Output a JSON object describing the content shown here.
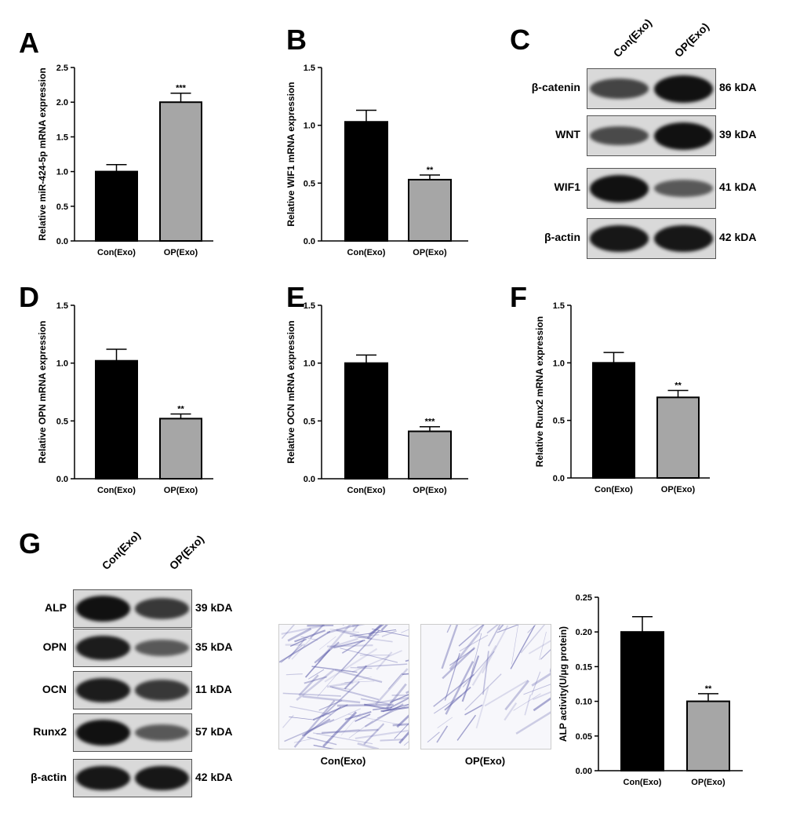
{
  "panels": {
    "A": "A",
    "B": "B",
    "C": "C",
    "D": "D",
    "E": "E",
    "F": "F",
    "G": "G"
  },
  "chart_data": [
    {
      "id": "A",
      "type": "bar",
      "categories": [
        "Con(Exo)",
        "OP(Exo)"
      ],
      "values": [
        1.0,
        2.0
      ],
      "errors": [
        0.1,
        0.13
      ],
      "significance": [
        "",
        "***"
      ],
      "ylabel": "Relative miR-424-5p mRNA expression",
      "ylim": [
        0,
        2.5
      ],
      "yticks": [
        "0.0",
        "0.5",
        "1.0",
        "1.5",
        "2.0",
        "2.5"
      ],
      "colors": [
        "#000000",
        "#a6a6a6"
      ]
    },
    {
      "id": "B",
      "type": "bar",
      "categories": [
        "Con(Exo)",
        "OP(Exo)"
      ],
      "values": [
        1.03,
        0.53
      ],
      "errors": [
        0.1,
        0.04
      ],
      "significance": [
        "",
        "**"
      ],
      "ylabel": "Relative WIF1 mRNA expression",
      "ylim": [
        0,
        1.5
      ],
      "yticks": [
        "0.0",
        "0.5",
        "1.0",
        "1.5"
      ],
      "colors": [
        "#000000",
        "#a6a6a6"
      ]
    },
    {
      "id": "D",
      "type": "bar",
      "categories": [
        "Con(Exo)",
        "OP(Exo)"
      ],
      "values": [
        1.02,
        0.52
      ],
      "errors": [
        0.1,
        0.04
      ],
      "significance": [
        "",
        "**"
      ],
      "ylabel": "Relative OPN mRNA expression",
      "ylim": [
        0,
        1.5
      ],
      "yticks": [
        "0.0",
        "0.5",
        "1.0",
        "1.5"
      ],
      "colors": [
        "#000000",
        "#a6a6a6"
      ]
    },
    {
      "id": "E",
      "type": "bar",
      "categories": [
        "Con(Exo)",
        "OP(Exo)"
      ],
      "values": [
        1.0,
        0.41
      ],
      "errors": [
        0.07,
        0.04
      ],
      "significance": [
        "",
        "***"
      ],
      "ylabel": "Relative OCN mRNA expression",
      "ylim": [
        0,
        1.5
      ],
      "yticks": [
        "0.0",
        "0.5",
        "1.0",
        "1.5"
      ],
      "colors": [
        "#000000",
        "#a6a6a6"
      ]
    },
    {
      "id": "F",
      "type": "bar",
      "categories": [
        "Con(Exo)",
        "OP(Exo)"
      ],
      "values": [
        1.0,
        0.7
      ],
      "errors": [
        0.09,
        0.06
      ],
      "significance": [
        "",
        "**"
      ],
      "ylabel": "Relative Runx2 mRNA expression",
      "ylim": [
        0,
        1.5
      ],
      "yticks": [
        "0.0",
        "0.5",
        "1.0",
        "1.5"
      ],
      "colors": [
        "#000000",
        "#a6a6a6"
      ]
    },
    {
      "id": "G",
      "type": "bar",
      "categories": [
        "Con(Exo)",
        "OP(Exo)"
      ],
      "values": [
        0.2,
        0.1
      ],
      "errors": [
        0.022,
        0.011
      ],
      "significance": [
        "",
        "**"
      ],
      "ylabel": "ALP activity(U/μg protein)",
      "ylim": [
        0,
        0.25
      ],
      "yticks": [
        "0.00",
        "0.05",
        "0.10",
        "0.15",
        "0.20",
        "0.25"
      ],
      "colors": [
        "#000000",
        "#a6a6a6"
      ]
    }
  ],
  "blotC": {
    "lanes": [
      "Con(Exo)",
      "OP(Exo)"
    ],
    "rows": [
      {
        "label": "β-catenin",
        "kda": "86 kDA",
        "intensity": [
          0.6,
          1.0
        ]
      },
      {
        "label": "WNT",
        "kda": "39 kDA",
        "intensity": [
          0.55,
          1.0
        ]
      },
      {
        "label": "WIF1",
        "kda": "41 kDA",
        "intensity": [
          1.0,
          0.45
        ]
      },
      {
        "label": "β-actin",
        "kda": "42 kDA",
        "intensity": [
          0.95,
          0.95
        ]
      }
    ]
  },
  "blotG": {
    "lanes": [
      "Con(Exo)",
      "OP(Exo)"
    ],
    "rows": [
      {
        "label": "ALP",
        "kda": "39 kDA",
        "intensity": [
          1.0,
          0.7
        ]
      },
      {
        "label": "OPN",
        "kda": "35 kDA",
        "intensity": [
          0.9,
          0.45
        ]
      },
      {
        "label": "OCN",
        "kda": "11 kDA",
        "intensity": [
          0.9,
          0.7
        ]
      },
      {
        "label": "Runx2",
        "kda": "57 kDA",
        "intensity": [
          1.0,
          0.45
        ]
      },
      {
        "label": "β-actin",
        "kda": "42 kDA",
        "intensity": [
          0.95,
          0.95
        ]
      }
    ]
  },
  "stain": {
    "captions": [
      "Con(Exo)",
      "OP(Exo)"
    ],
    "density": [
      1.0,
      0.45
    ],
    "color": "#5a5aa8"
  }
}
